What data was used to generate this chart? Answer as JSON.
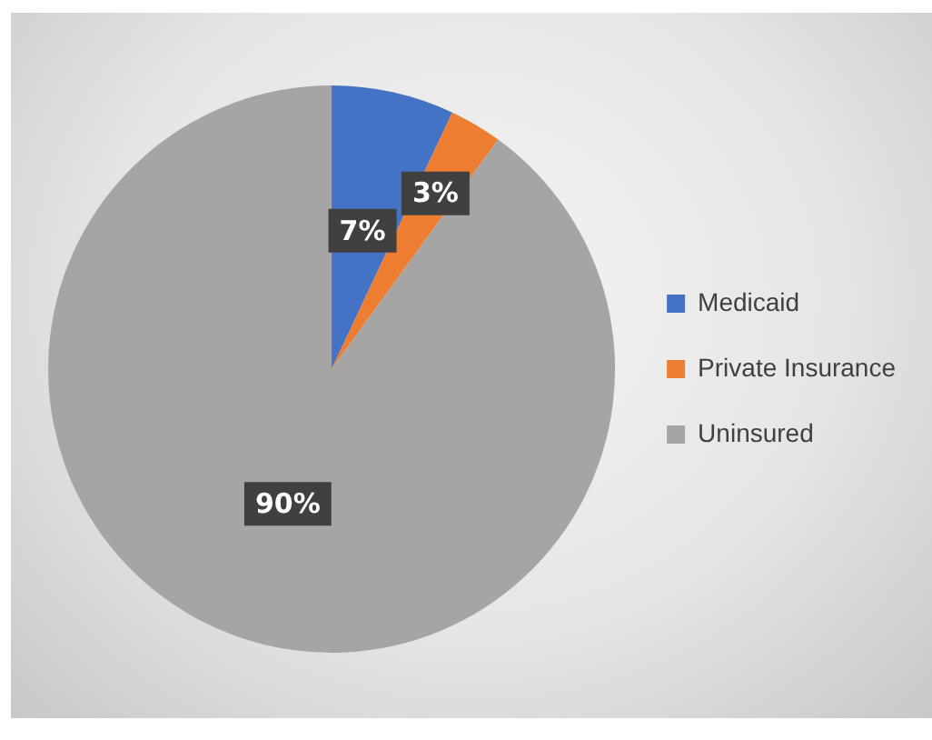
{
  "chart_data": {
    "type": "pie",
    "categories": [
      "Medicaid",
      "Private Insurance",
      "Uninsured"
    ],
    "values": [
      7,
      3,
      90
    ],
    "colors": [
      "#4472c4",
      "#ed7d31",
      "#a5a5a5"
    ],
    "value_labels": [
      "7%",
      "3%",
      "90%"
    ],
    "legend": "right"
  }
}
